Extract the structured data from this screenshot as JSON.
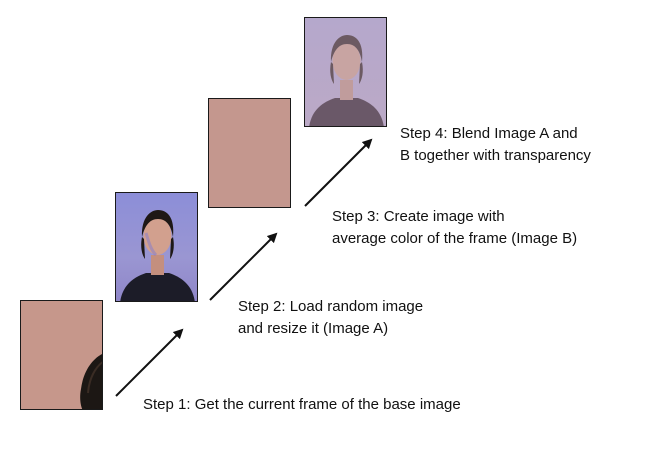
{
  "steps": [
    {
      "lines": [
        "Step 1: Get the current frame of the base image"
      ]
    },
    {
      "lines": [
        "Step 2: Load random image",
        "and resize it (Image A)"
      ]
    },
    {
      "lines": [
        "Step 3: Create image with",
        "average color of the frame (Image B)"
      ]
    },
    {
      "lines": [
        "Step 4: Blend Image A and",
        "B together with transparency"
      ]
    }
  ],
  "colors": {
    "frame_skin": "#c6978b",
    "average_color": "#c4978e",
    "portrait_bg": "#8f8fd4",
    "blend_bg": "#b7a7c6",
    "arrow": "#111111"
  }
}
